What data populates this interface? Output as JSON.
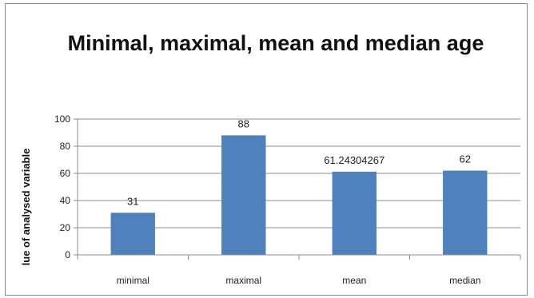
{
  "chart_data": {
    "type": "bar",
    "title": "Minimal, maximal, mean and median age",
    "ylabel": "lue of analysed variable",
    "xlabel": "",
    "categories": [
      "minimal",
      "maximal",
      "mean",
      "median"
    ],
    "values": [
      31,
      88,
      61.24304267,
      62
    ],
    "data_labels": [
      "31",
      "88",
      "61.24304267",
      "62"
    ],
    "ylim": [
      0,
      100
    ],
    "yticks": [
      0,
      20,
      40,
      60,
      80,
      100
    ],
    "ytick_labels": [
      "0",
      "20",
      "40",
      "60",
      "80",
      "100"
    ],
    "grid": true,
    "legend": "none",
    "bar_color": "#4f81bd",
    "gridline_color": "#8c8c8c"
  }
}
